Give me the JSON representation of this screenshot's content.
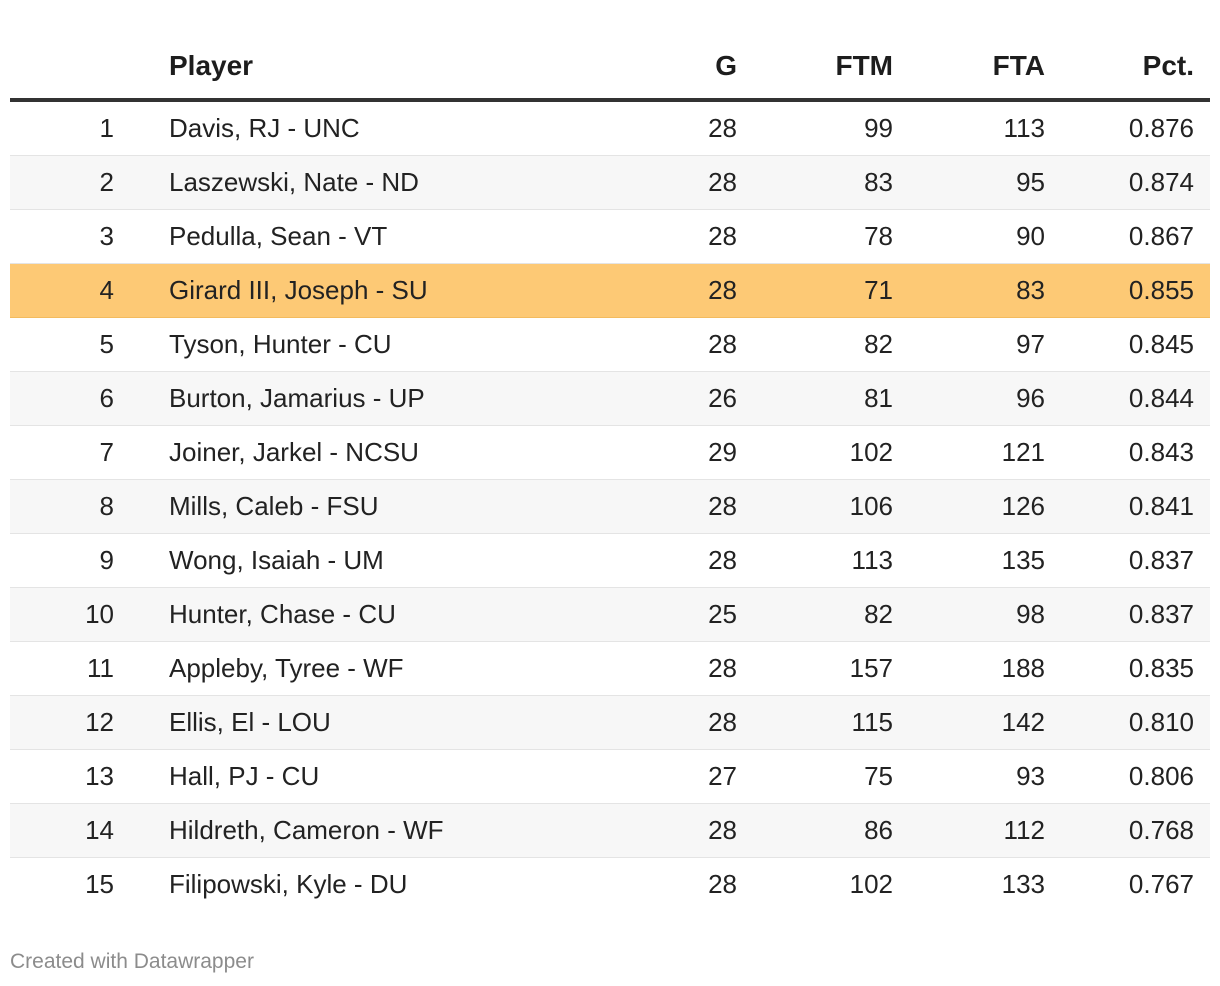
{
  "table": {
    "headers": {
      "rank": "",
      "player": "Player",
      "g": "G",
      "ftm": "FTM",
      "fta": "FTA",
      "pct": "Pct."
    },
    "highlight_color": "#fdc975",
    "rows": [
      {
        "rank": "1",
        "player": "Davis, RJ - UNC",
        "g": "28",
        "ftm": "99",
        "fta": "113",
        "pct": "0.876",
        "highlight": false
      },
      {
        "rank": "2",
        "player": "Laszewski, Nate - ND",
        "g": "28",
        "ftm": "83",
        "fta": "95",
        "pct": "0.874",
        "highlight": false
      },
      {
        "rank": "3",
        "player": "Pedulla, Sean - VT",
        "g": "28",
        "ftm": "78",
        "fta": "90",
        "pct": "0.867",
        "highlight": false
      },
      {
        "rank": "4",
        "player": "Girard III, Joseph - SU",
        "g": "28",
        "ftm": "71",
        "fta": "83",
        "pct": "0.855",
        "highlight": true
      },
      {
        "rank": "5",
        "player": "Tyson, Hunter - CU",
        "g": "28",
        "ftm": "82",
        "fta": "97",
        "pct": "0.845",
        "highlight": false
      },
      {
        "rank": "6",
        "player": "Burton, Jamarius - UP",
        "g": "26",
        "ftm": "81",
        "fta": "96",
        "pct": "0.844",
        "highlight": false
      },
      {
        "rank": "7",
        "player": "Joiner, Jarkel - NCSU",
        "g": "29",
        "ftm": "102",
        "fta": "121",
        "pct": "0.843",
        "highlight": false
      },
      {
        "rank": "8",
        "player": "Mills, Caleb - FSU",
        "g": "28",
        "ftm": "106",
        "fta": "126",
        "pct": "0.841",
        "highlight": false
      },
      {
        "rank": "9",
        "player": "Wong, Isaiah - UM",
        "g": "28",
        "ftm": "113",
        "fta": "135",
        "pct": "0.837",
        "highlight": false
      },
      {
        "rank": "10",
        "player": "Hunter, Chase - CU",
        "g": "25",
        "ftm": "82",
        "fta": "98",
        "pct": "0.837",
        "highlight": false
      },
      {
        "rank": "11",
        "player": "Appleby, Tyree - WF",
        "g": "28",
        "ftm": "157",
        "fta": "188",
        "pct": "0.835",
        "highlight": false
      },
      {
        "rank": "12",
        "player": "Ellis, El - LOU",
        "g": "28",
        "ftm": "115",
        "fta": "142",
        "pct": "0.810",
        "highlight": false
      },
      {
        "rank": "13",
        "player": "Hall, PJ - CU",
        "g": "27",
        "ftm": "75",
        "fta": "93",
        "pct": "0.806",
        "highlight": false
      },
      {
        "rank": "14",
        "player": "Hildreth, Cameron - WF",
        "g": "28",
        "ftm": "86",
        "fta": "112",
        "pct": "0.768",
        "highlight": false
      },
      {
        "rank": "15",
        "player": "Filipowski, Kyle - DU",
        "g": "28",
        "ftm": "102",
        "fta": "133",
        "pct": "0.767",
        "highlight": false
      }
    ]
  },
  "chart_data": {
    "type": "table",
    "columns": [
      "",
      "Player",
      "G",
      "FTM",
      "FTA",
      "Pct."
    ],
    "rows": [
      [
        "1",
        "Davis, RJ - UNC",
        28,
        99,
        113,
        0.876
      ],
      [
        "2",
        "Laszewski, Nate - ND",
        28,
        83,
        95,
        0.874
      ],
      [
        "3",
        "Pedulla, Sean - VT",
        28,
        78,
        90,
        0.867
      ],
      [
        "4",
        "Girard III, Joseph - SU",
        28,
        71,
        83,
        0.855
      ],
      [
        "5",
        "Tyson, Hunter - CU",
        28,
        82,
        97,
        0.845
      ],
      [
        "6",
        "Burton, Jamarius - UP",
        26,
        81,
        96,
        0.844
      ],
      [
        "7",
        "Joiner, Jarkel - NCSU",
        29,
        102,
        121,
        0.843
      ],
      [
        "8",
        "Mills, Caleb - FSU",
        28,
        106,
        126,
        0.841
      ],
      [
        "9",
        "Wong, Isaiah - UM",
        28,
        113,
        135,
        0.837
      ],
      [
        "10",
        "Hunter, Chase - CU",
        25,
        82,
        98,
        0.837
      ],
      [
        "11",
        "Appleby, Tyree - WF",
        28,
        157,
        188,
        0.835
      ],
      [
        "12",
        "Ellis, El - LOU",
        28,
        115,
        142,
        0.81
      ],
      [
        "13",
        "Hall, PJ - CU",
        27,
        75,
        93,
        0.806
      ],
      [
        "14",
        "Hildreth, Cameron - WF",
        28,
        86,
        112,
        0.768
      ],
      [
        "15",
        "Filipowski, Kyle - DU",
        28,
        102,
        133,
        0.767
      ]
    ],
    "highlighted_row": 4
  },
  "footer": {
    "credit": "Created with Datawrapper"
  }
}
